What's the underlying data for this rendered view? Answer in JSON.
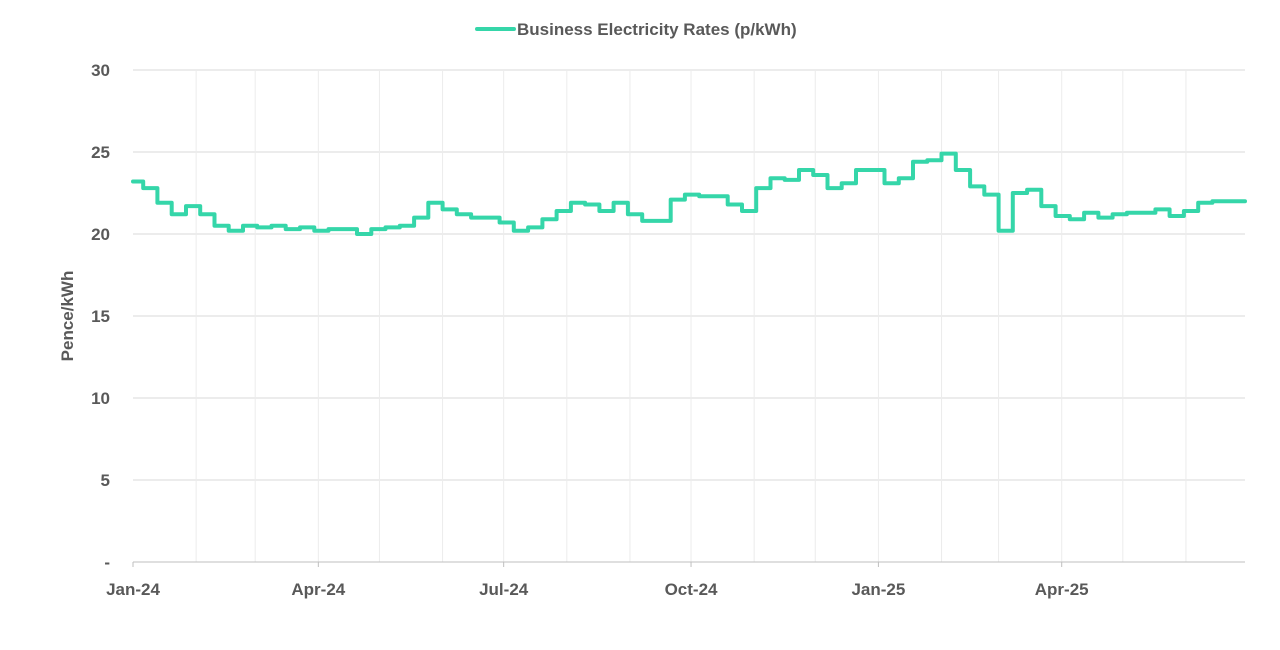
{
  "colors": {
    "series": "#35d6a9",
    "grid": "#d9d9d9",
    "text": "#595959"
  },
  "chart_data": {
    "type": "line",
    "title": "",
    "xlabel": "",
    "ylabel": "Pence/kWh",
    "ylim": [
      0,
      30
    ],
    "yticks": [
      0,
      5,
      10,
      15,
      20,
      25,
      30
    ],
    "ytick_labels": [
      "-",
      "5",
      "10",
      "15",
      "20",
      "25",
      "30"
    ],
    "x_start": "2024-01-01",
    "x_end": "2025-06-30",
    "xtick_dates": [
      "2024-01-01",
      "2024-04-01",
      "2024-07-01",
      "2024-10-01",
      "2025-01-01",
      "2025-04-01"
    ],
    "xtick_labels": [
      "Jan-24",
      "Apr-24",
      "Jul-24",
      "Oct-24",
      "Jan-25",
      "Apr-25"
    ],
    "minor_grid_dates": [
      "2024-02-01",
      "2024-03-01",
      "2024-05-01",
      "2024-06-01",
      "2024-08-01",
      "2024-09-01",
      "2024-11-01",
      "2024-12-01",
      "2025-02-01",
      "2025-03-01",
      "2025-05-01",
      "2025-06-01"
    ],
    "legend_position": "top-center",
    "series": [
      {
        "name": "Business Electricity Rates (p/kWh)",
        "step": true,
        "x": [
          "2024-01-01",
          "2024-01-06",
          "2024-01-13",
          "2024-01-20",
          "2024-01-27",
          "2024-02-03",
          "2024-02-10",
          "2024-02-17",
          "2024-02-24",
          "2024-03-02",
          "2024-03-09",
          "2024-03-16",
          "2024-03-23",
          "2024-03-30",
          "2024-04-06",
          "2024-04-13",
          "2024-04-20",
          "2024-04-27",
          "2024-05-04",
          "2024-05-11",
          "2024-05-18",
          "2024-05-25",
          "2024-06-01",
          "2024-06-08",
          "2024-06-15",
          "2024-06-22",
          "2024-06-29",
          "2024-07-06",
          "2024-07-13",
          "2024-07-20",
          "2024-07-27",
          "2024-08-03",
          "2024-08-10",
          "2024-08-17",
          "2024-08-24",
          "2024-08-31",
          "2024-09-07",
          "2024-09-14",
          "2024-09-21",
          "2024-09-28",
          "2024-10-05",
          "2024-10-12",
          "2024-10-19",
          "2024-10-26",
          "2024-11-02",
          "2024-11-09",
          "2024-11-16",
          "2024-11-23",
          "2024-11-30",
          "2024-12-07",
          "2024-12-14",
          "2024-12-21",
          "2024-12-28",
          "2025-01-04",
          "2025-01-11",
          "2025-01-18",
          "2025-01-25",
          "2025-02-01",
          "2025-02-08",
          "2025-02-15",
          "2025-02-22",
          "2025-03-01",
          "2025-03-08",
          "2025-03-15",
          "2025-03-22",
          "2025-03-29",
          "2025-04-05",
          "2025-04-12",
          "2025-04-19",
          "2025-04-26",
          "2025-05-03",
          "2025-05-10",
          "2025-05-17",
          "2025-05-24",
          "2025-05-31",
          "2025-06-07",
          "2025-06-14",
          "2025-06-21",
          "2025-06-30"
        ],
        "y": [
          23.2,
          22.8,
          21.9,
          21.2,
          21.7,
          21.2,
          20.5,
          20.2,
          20.5,
          20.4,
          20.5,
          20.3,
          20.4,
          20.2,
          20.3,
          20.3,
          20.0,
          20.3,
          20.4,
          20.5,
          21.0,
          21.9,
          21.5,
          21.2,
          21.0,
          21.0,
          20.7,
          20.2,
          20.4,
          20.9,
          21.4,
          21.9,
          21.8,
          21.4,
          21.9,
          21.2,
          20.8,
          20.8,
          22.1,
          22.4,
          22.3,
          22.3,
          21.8,
          21.4,
          22.8,
          23.4,
          23.3,
          23.9,
          23.6,
          22.8,
          23.1,
          23.9,
          23.9,
          23.1,
          23.4,
          24.4,
          24.5,
          24.9,
          23.9,
          22.9,
          22.4,
          20.2,
          22.5,
          22.7,
          21.7,
          21.1,
          20.9,
          21.3,
          21.0,
          21.2,
          21.3,
          21.3,
          21.5,
          21.1,
          21.4,
          21.9,
          22.0,
          22.0,
          22.0
        ]
      }
    ]
  }
}
